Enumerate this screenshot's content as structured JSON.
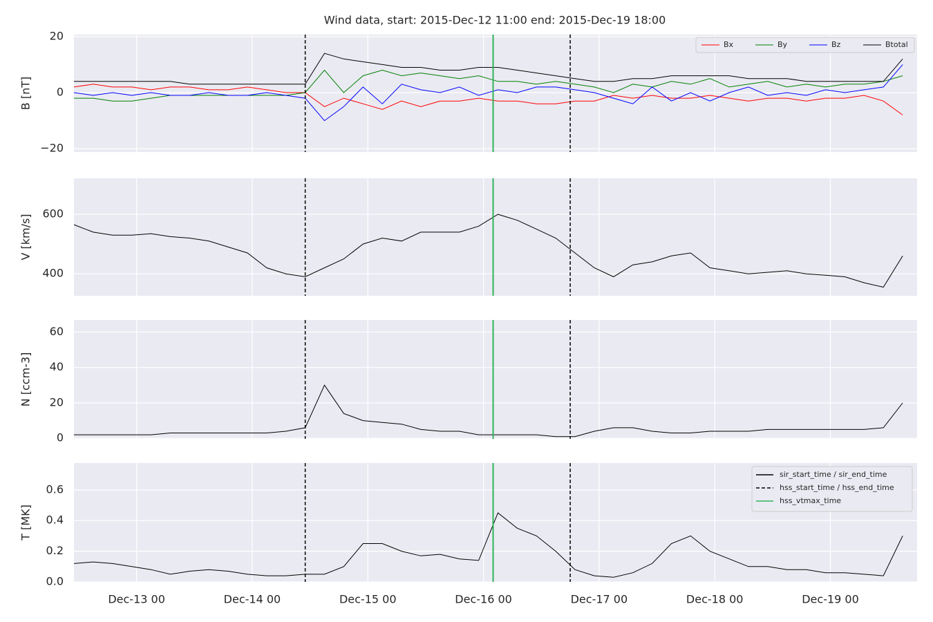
{
  "chart_data": [
    {
      "type": "line",
      "title": "Wind data, start: 2015-Dec-12 11:00  end: 2015-Dec-19 18:00",
      "ylabel": "B [nT]",
      "xlim": [
        "Dec-12 11",
        "Dec-19 18"
      ],
      "ylim": [
        -21.2,
        20.7
      ],
      "yticks": [
        {
          "value": -20,
          "label": "−20"
        },
        0,
        20
      ],
      "grid": true,
      "legend": "upper right",
      "legend_layout": "row",
      "x": [
        "Dec-12 11",
        "Dec-12 15",
        "Dec-12 19",
        "Dec-12 23",
        "Dec-13 03",
        "Dec-13 07",
        "Dec-13 11",
        "Dec-13 15",
        "Dec-13 19",
        "Dec-13 23",
        "Dec-14 03",
        "Dec-14 07",
        "Dec-14 11",
        "Dec-14 15",
        "Dec-14 19",
        "Dec-14 23",
        "Dec-15 03",
        "Dec-15 07",
        "Dec-15 11",
        "Dec-15 15",
        "Dec-15 19",
        "Dec-15 23",
        "Dec-16 03",
        "Dec-16 07",
        "Dec-16 11",
        "Dec-16 15",
        "Dec-16 19",
        "Dec-16 23",
        "Dec-17 03",
        "Dec-17 07",
        "Dec-17 11",
        "Dec-17 15",
        "Dec-17 19",
        "Dec-17 23",
        "Dec-18 03",
        "Dec-18 07",
        "Dec-18 11",
        "Dec-18 15",
        "Dec-18 19",
        "Dec-18 23",
        "Dec-19 03",
        "Dec-19 07",
        "Dec-19 11",
        "Dec-19 15"
      ],
      "series": [
        {
          "name": "Bx",
          "color": "#ff0000",
          "values": [
            2,
            3,
            2,
            2,
            1,
            2,
            2,
            1,
            1,
            2,
            1,
            0,
            0,
            -5,
            -2,
            -4,
            -6,
            -3,
            -5,
            -3,
            -3,
            -2,
            -3,
            -3,
            -4,
            -4,
            -3,
            -3,
            -1,
            -2,
            -1,
            -2,
            -2,
            -1,
            -2,
            -3,
            -2,
            -2,
            -3,
            -2,
            -2,
            -1,
            -3,
            -8
          ]
        },
        {
          "name": "By",
          "color": "#008000",
          "values": [
            -2,
            -2,
            -3,
            -3,
            -2,
            -1,
            -1,
            -1,
            -1,
            -1,
            -1,
            -1,
            0,
            8,
            0,
            6,
            8,
            6,
            7,
            6,
            5,
            6,
            4,
            4,
            3,
            4,
            3,
            2,
            0,
            3,
            2,
            4,
            3,
            5,
            2,
            3,
            4,
            2,
            3,
            2,
            3,
            3,
            4,
            6
          ]
        },
        {
          "name": "Bz",
          "color": "#0000ff",
          "values": [
            0,
            -1,
            0,
            -1,
            0,
            -1,
            -1,
            0,
            -1,
            -1,
            0,
            -1,
            -2,
            -10,
            -5,
            2,
            -4,
            3,
            1,
            0,
            2,
            -1,
            1,
            0,
            2,
            2,
            1,
            0,
            -2,
            -4,
            2,
            -3,
            0,
            -3,
            0,
            2,
            -1,
            0,
            -1,
            1,
            0,
            1,
            2,
            10
          ]
        },
        {
          "name": "Btotal",
          "color": "#000000",
          "values": [
            4,
            4,
            4,
            4,
            4,
            4,
            3,
            3,
            3,
            3,
            3,
            3,
            3,
            14,
            12,
            11,
            10,
            9,
            9,
            8,
            8,
            9,
            9,
            8,
            7,
            6,
            5,
            4,
            4,
            5,
            5,
            6,
            6,
            6,
            6,
            5,
            5,
            5,
            4,
            4,
            4,
            4,
            4,
            12
          ]
        }
      ]
    },
    {
      "type": "line",
      "ylabel": "V [km/s]",
      "xlim": [
        "Dec-12 11",
        "Dec-19 18"
      ],
      "ylim": [
        326,
        721
      ],
      "yticks": [
        400,
        600
      ],
      "grid": true,
      "x": [
        "Dec-12 11",
        "Dec-12 15",
        "Dec-12 19",
        "Dec-12 23",
        "Dec-13 03",
        "Dec-13 07",
        "Dec-13 11",
        "Dec-13 15",
        "Dec-13 19",
        "Dec-13 23",
        "Dec-14 03",
        "Dec-14 07",
        "Dec-14 11",
        "Dec-14 15",
        "Dec-14 19",
        "Dec-14 23",
        "Dec-15 03",
        "Dec-15 07",
        "Dec-15 11",
        "Dec-15 15",
        "Dec-15 19",
        "Dec-15 23",
        "Dec-16 03",
        "Dec-16 07",
        "Dec-16 11",
        "Dec-16 15",
        "Dec-16 19",
        "Dec-16 23",
        "Dec-17 03",
        "Dec-17 07",
        "Dec-17 11",
        "Dec-17 15",
        "Dec-17 19",
        "Dec-17 23",
        "Dec-18 03",
        "Dec-18 07",
        "Dec-18 11",
        "Dec-18 15",
        "Dec-18 19",
        "Dec-18 23",
        "Dec-19 03",
        "Dec-19 07",
        "Dec-19 11",
        "Dec-19 15"
      ],
      "series": [
        {
          "name": "V",
          "color": "#000000",
          "values": [
            565,
            540,
            530,
            530,
            535,
            525,
            520,
            510,
            490,
            470,
            420,
            400,
            390,
            420,
            450,
            500,
            520,
            510,
            540,
            540,
            540,
            560,
            600,
            580,
            550,
            520,
            470,
            420,
            390,
            430,
            440,
            460,
            470,
            420,
            410,
            400,
            405,
            410,
            400,
            395,
            390,
            370,
            355,
            460
          ]
        }
      ]
    },
    {
      "type": "line",
      "ylabel": "N [ccm-3]",
      "xlim": [
        "Dec-12 11",
        "Dec-19 18"
      ],
      "ylim": [
        -0.3,
        66.8
      ],
      "yticks": [
        0,
        20,
        40,
        60
      ],
      "grid": true,
      "x": [
        "Dec-12 11",
        "Dec-12 15",
        "Dec-12 19",
        "Dec-12 23",
        "Dec-13 03",
        "Dec-13 07",
        "Dec-13 11",
        "Dec-13 15",
        "Dec-13 19",
        "Dec-13 23",
        "Dec-14 03",
        "Dec-14 07",
        "Dec-14 11",
        "Dec-14 15",
        "Dec-14 19",
        "Dec-14 23",
        "Dec-15 03",
        "Dec-15 07",
        "Dec-15 11",
        "Dec-15 15",
        "Dec-15 19",
        "Dec-15 23",
        "Dec-16 03",
        "Dec-16 07",
        "Dec-16 11",
        "Dec-16 15",
        "Dec-16 19",
        "Dec-16 23",
        "Dec-17 03",
        "Dec-17 07",
        "Dec-17 11",
        "Dec-17 15",
        "Dec-17 19",
        "Dec-17 23",
        "Dec-18 03",
        "Dec-18 07",
        "Dec-18 11",
        "Dec-18 15",
        "Dec-18 19",
        "Dec-18 23",
        "Dec-19 03",
        "Dec-19 07",
        "Dec-19 11",
        "Dec-19 15"
      ],
      "series": [
        {
          "name": "N",
          "color": "#000000",
          "values": [
            2,
            2,
            2,
            2,
            2,
            3,
            3,
            3,
            3,
            3,
            3,
            4,
            6,
            30,
            14,
            10,
            9,
            8,
            5,
            4,
            4,
            2,
            2,
            2,
            2,
            1,
            1,
            4,
            6,
            6,
            4,
            3,
            3,
            4,
            4,
            4,
            5,
            5,
            5,
            5,
            5,
            5,
            6,
            20
          ]
        }
      ]
    },
    {
      "type": "line",
      "ylabel": "T [MK]",
      "xlim": [
        "Dec-12 11",
        "Dec-19 18"
      ],
      "ylim": [
        0,
        0.775
      ],
      "yticks": [
        {
          "value": 0,
          "label": "0.0"
        },
        0.2,
        0.4,
        0.6
      ],
      "grid": true,
      "legend": "upper right",
      "legend_layout": "column",
      "xticks": [
        "Dec-13 00",
        "Dec-14 00",
        "Dec-15 00",
        "Dec-16 00",
        "Dec-17 00",
        "Dec-18 00",
        "Dec-19 00"
      ],
      "x": [
        "Dec-12 11",
        "Dec-12 15",
        "Dec-12 19",
        "Dec-12 23",
        "Dec-13 03",
        "Dec-13 07",
        "Dec-13 11",
        "Dec-13 15",
        "Dec-13 19",
        "Dec-13 23",
        "Dec-14 03",
        "Dec-14 07",
        "Dec-14 11",
        "Dec-14 15",
        "Dec-14 19",
        "Dec-14 23",
        "Dec-15 03",
        "Dec-15 07",
        "Dec-15 11",
        "Dec-15 15",
        "Dec-15 19",
        "Dec-15 23",
        "Dec-16 03",
        "Dec-16 07",
        "Dec-16 11",
        "Dec-16 15",
        "Dec-16 19",
        "Dec-16 23",
        "Dec-17 03",
        "Dec-17 07",
        "Dec-17 11",
        "Dec-17 15",
        "Dec-17 19",
        "Dec-17 23",
        "Dec-18 03",
        "Dec-18 07",
        "Dec-18 11",
        "Dec-18 15",
        "Dec-18 19",
        "Dec-18 23",
        "Dec-19 03",
        "Dec-19 07",
        "Dec-19 11",
        "Dec-19 15"
      ],
      "series": [
        {
          "color": "#000000",
          "values": [
            0.12,
            0.13,
            0.12,
            0.1,
            0.08,
            0.05,
            0.07,
            0.08,
            0.07,
            0.05,
            0.04,
            0.04,
            0.05,
            0.05,
            0.1,
            0.25,
            0.25,
            0.2,
            0.17,
            0.18,
            0.15,
            0.14,
            0.45,
            0.35,
            0.3,
            0.2,
            0.08,
            0.04,
            0.03,
            0.06,
            0.12,
            0.25,
            0.3,
            0.2,
            0.15,
            0.1,
            0.1,
            0.08,
            0.08,
            0.06,
            0.06,
            0.05,
            0.04,
            0.3
          ]
        }
      ],
      "events": [
        {
          "name": "sir_start_time / sir_end_time",
          "color": "#000000",
          "dashed": false
        },
        {
          "name": "hss_start_time / hss_end_time",
          "color": "#000000",
          "dashed": true,
          "times": [
            "Dec-14 11",
            "Dec-16 18"
          ]
        },
        {
          "name": "hss_vtmax_time",
          "color": "#2fb35a",
          "dashed": false,
          "times": [
            "Dec-16 02"
          ]
        }
      ]
    }
  ]
}
